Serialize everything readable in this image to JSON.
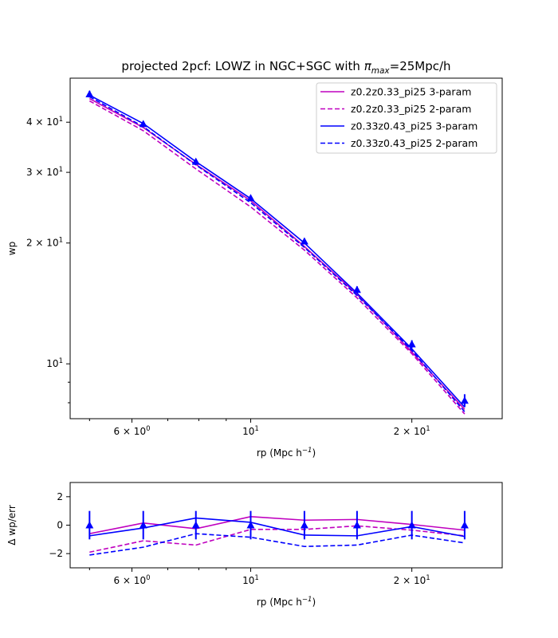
{
  "chart_data": [
    {
      "type": "line",
      "title_prefix": "projected 2pcf: LOWZ in NGC+SGC with ",
      "title_symbol": "π",
      "title_subscript": "max",
      "title_suffix": "=25Mpc/h",
      "xlabel": "rp (Mpc h",
      "xlabel_sup": "−1",
      "xlabel_close": ")",
      "ylabel": "wp",
      "xscale": "log",
      "yscale": "log",
      "xlim": [
        4.6,
        29.5
      ],
      "ylim": [
        7.3,
        51.5
      ],
      "x_major_ticks": [
        {
          "value": 6,
          "mant": "6 × 10",
          "exp": "0"
        },
        {
          "value": 10,
          "mant": "10",
          "exp": "1"
        },
        {
          "value": 20,
          "mant": "2 × 10",
          "exp": "1"
        }
      ],
      "x_minor_ticks": [
        5,
        7,
        8,
        9,
        30
      ],
      "y_major_ticks": [
        {
          "value": 10,
          "mant": "10",
          "exp": "1"
        },
        {
          "value": 20,
          "mant": "2 × 10",
          "exp": "1"
        },
        {
          "value": 30,
          "mant": "3 × 10",
          "exp": "1"
        },
        {
          "value": 40,
          "mant": "4 × 10",
          "exp": "1"
        }
      ],
      "y_minor_ticks": [
        8,
        9
      ],
      "legend": "top-right",
      "grid": false,
      "x": [
        5.0,
        6.3,
        7.9,
        10.0,
        12.6,
        15.8,
        20.0,
        25.1
      ],
      "observed": {
        "marker": "triangle",
        "color": "#0000ff",
        "y": [
          47.0,
          39.6,
          31.9,
          25.9,
          20.2,
          15.3,
          11.2,
          8.1
        ],
        "err": [
          0.9,
          0.6,
          0.5,
          0.4,
          0.35,
          0.3,
          0.25,
          0.3
        ]
      },
      "series": [
        {
          "name": "z0.2z0.33_pi25 3-param",
          "color": "#bf00bf",
          "dash": "solid",
          "y": [
            45.8,
            38.8,
            31.4,
            25.5,
            19.6,
            14.9,
            10.7,
            7.7
          ]
        },
        {
          "name": "z0.2z0.33_pi25 2-param",
          "color": "#bf00bf",
          "dash": "dashed",
          "y": [
            45.2,
            38.1,
            30.6,
            24.6,
            19.2,
            14.6,
            10.6,
            7.5
          ]
        },
        {
          "name": "z0.33z0.43_pi25 3-param",
          "color": "#0000ff",
          "dash": "solid",
          "y": [
            46.7,
            39.7,
            31.9,
            25.8,
            20.0,
            15.0,
            10.9,
            7.8
          ]
        },
        {
          "name": "z0.33z0.43_pi25 2-param",
          "color": "#0000ff",
          "dash": "dashed",
          "y": [
            46.3,
            39.0,
            31.3,
            25.2,
            19.5,
            14.8,
            10.8,
            7.6
          ]
        }
      ]
    },
    {
      "type": "line",
      "xlabel": "rp (Mpc h",
      "xlabel_sup": "−1",
      "xlabel_close": ")",
      "ylabel": "Δ wp/err",
      "xscale": "log",
      "yscale": "linear",
      "xlim": [
        4.6,
        29.5
      ],
      "ylim": [
        -3,
        3
      ],
      "y_ticks": [
        -2,
        0,
        2
      ],
      "x": [
        5.0,
        6.3,
        7.9,
        10.0,
        12.6,
        15.8,
        20.0,
        25.1
      ],
      "observed": {
        "marker": "triangle",
        "color": "#0000ff",
        "y": [
          0,
          0,
          0,
          0,
          0,
          0,
          0,
          0
        ],
        "err": [
          1,
          1,
          1,
          1,
          1,
          1,
          1,
          1
        ]
      },
      "series": [
        {
          "name": "z0.2z0.33_pi25 3-param",
          "color": "#bf00bf",
          "dash": "solid",
          "y": [
            -0.6,
            0.15,
            -0.25,
            0.6,
            0.35,
            0.4,
            0.05,
            -0.35
          ]
        },
        {
          "name": "z0.2z0.33_pi25 2-param",
          "color": "#bf00bf",
          "dash": "dashed",
          "y": [
            -1.9,
            -1.1,
            -1.4,
            -0.3,
            -0.3,
            -0.05,
            -0.35,
            -0.75
          ]
        },
        {
          "name": "z0.33z0.43_pi25 3-param",
          "color": "#0000ff",
          "dash": "solid",
          "y": [
            -0.75,
            -0.2,
            0.5,
            0.2,
            -0.7,
            -0.75,
            -0.1,
            -0.8
          ]
        },
        {
          "name": "z0.33z0.43_pi25 2-param",
          "color": "#0000ff",
          "dash": "dashed",
          "y": [
            -2.1,
            -1.55,
            -0.6,
            -0.85,
            -1.5,
            -1.4,
            -0.7,
            -1.25
          ]
        }
      ]
    }
  ]
}
